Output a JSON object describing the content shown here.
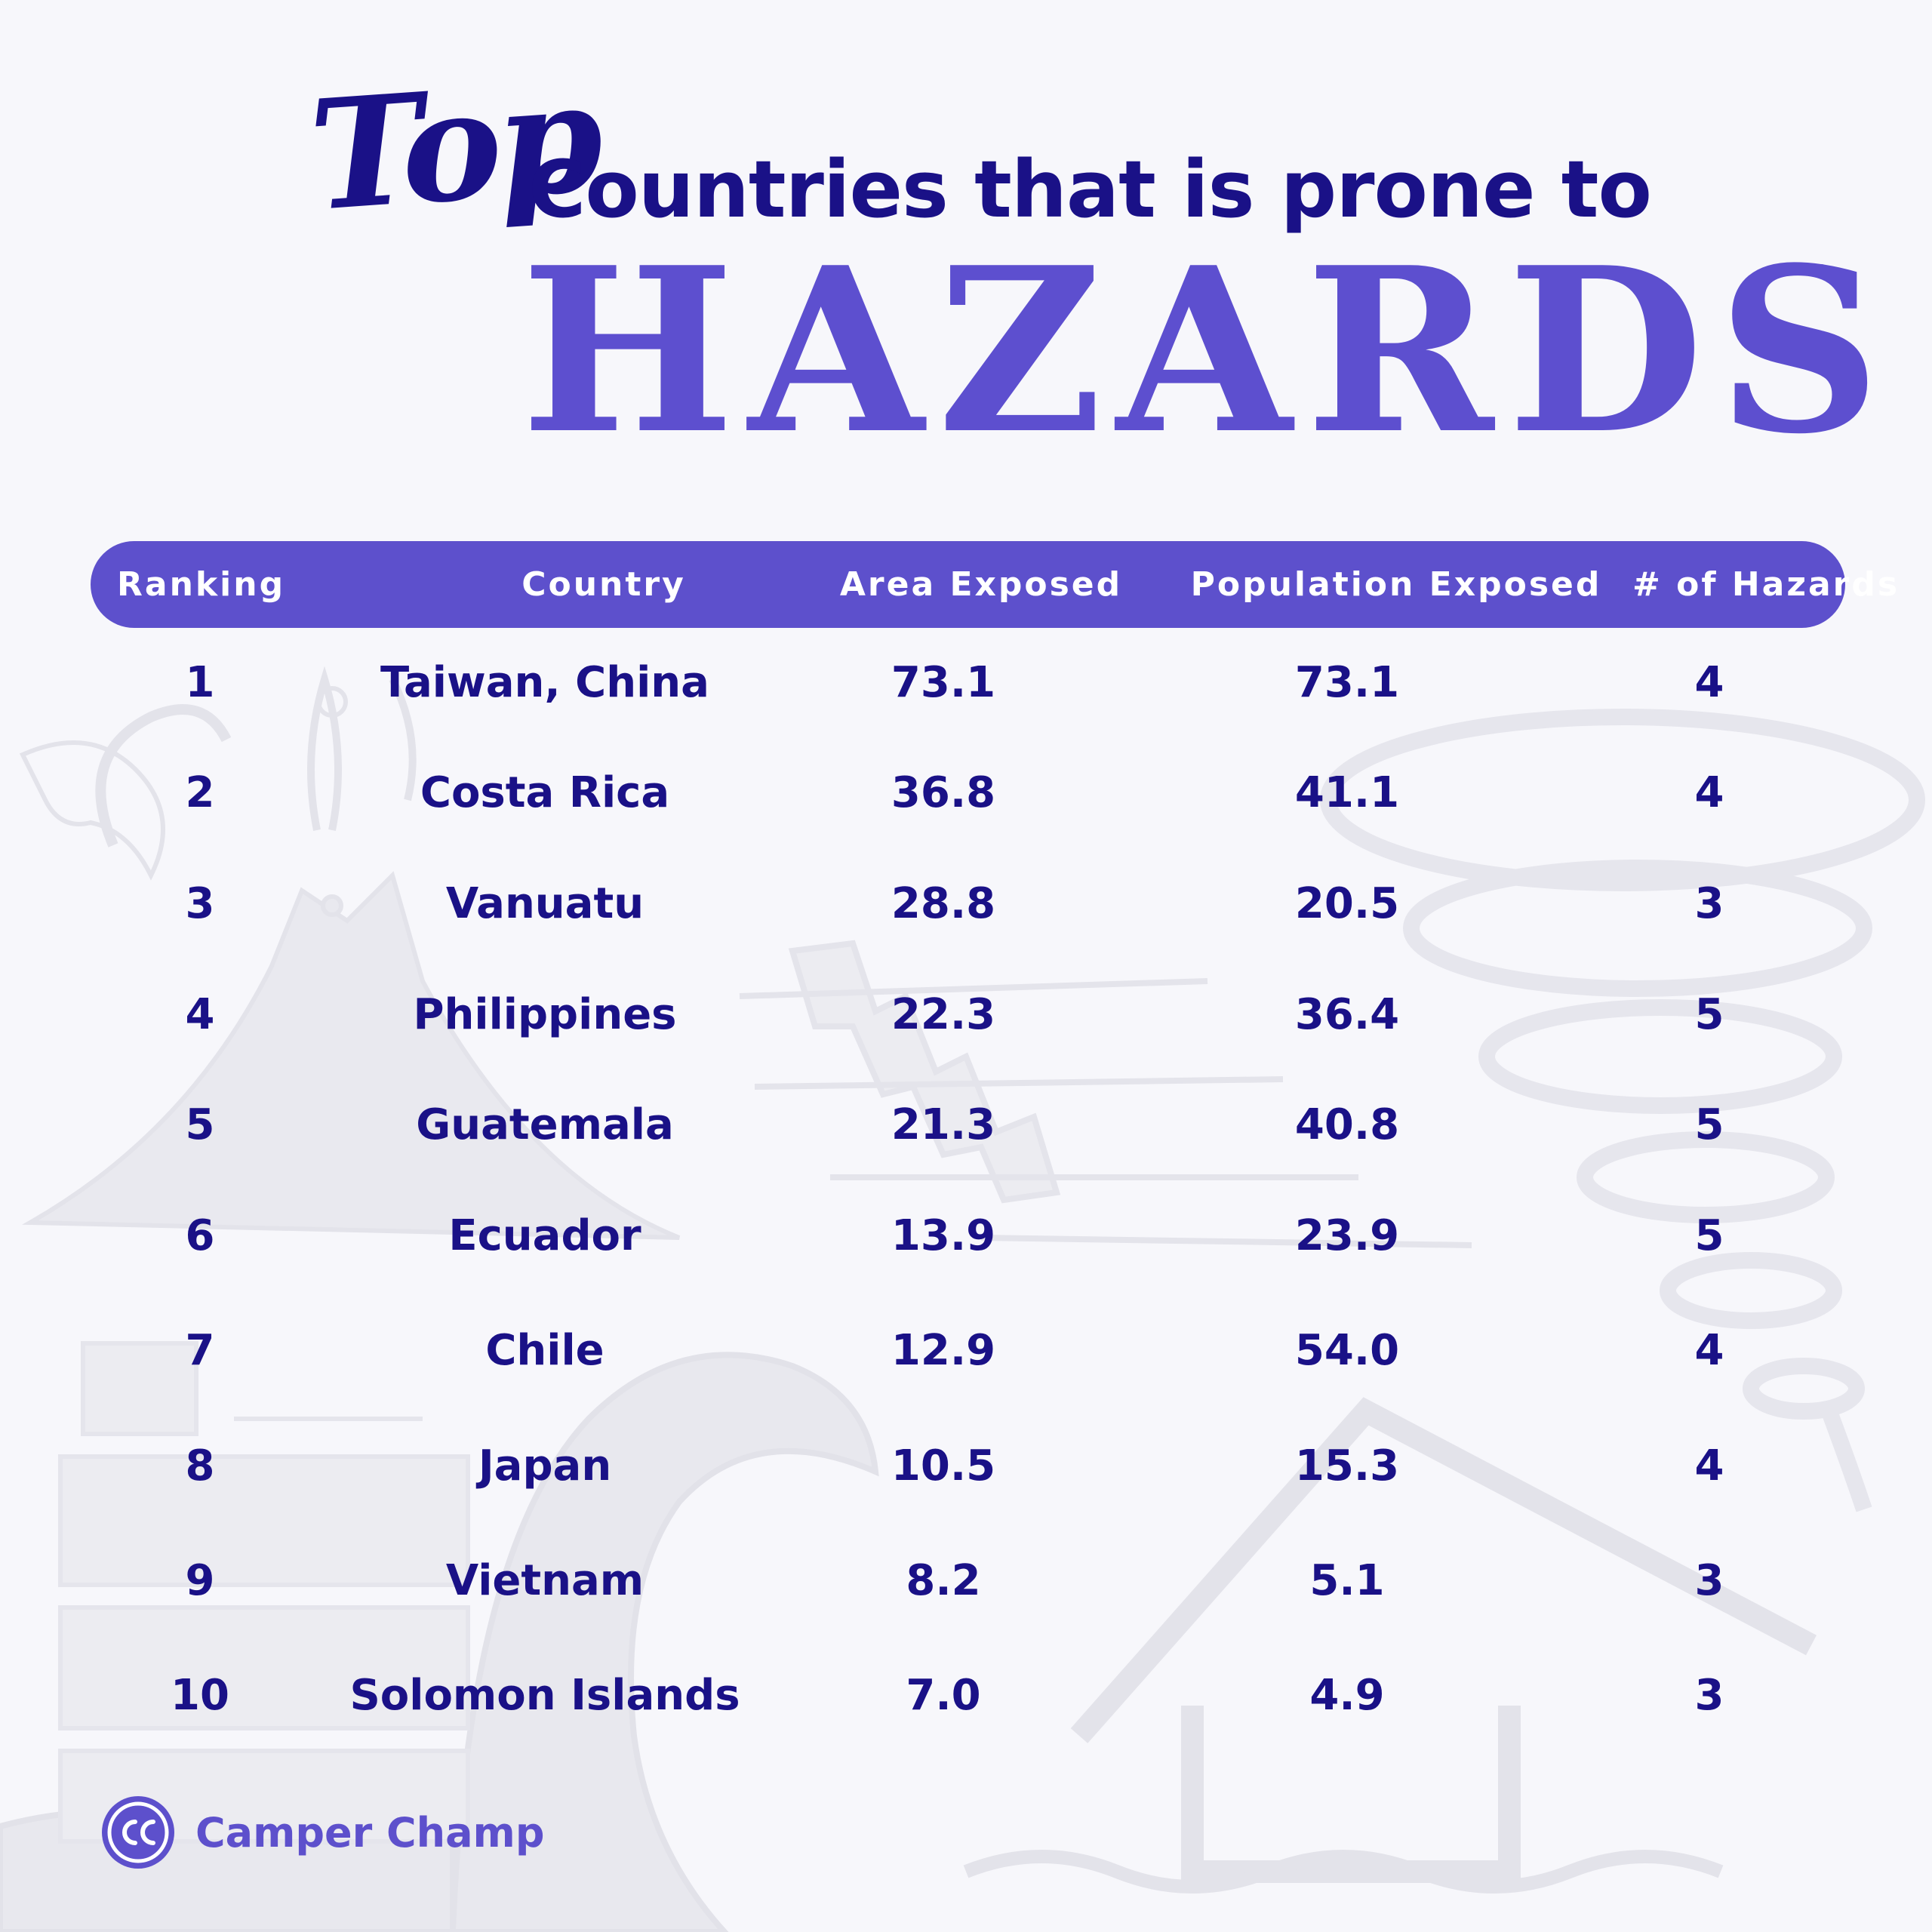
{
  "title": {
    "script": "Top",
    "main": "Countries that is prone to",
    "emphasis": "HAZARDS"
  },
  "colors": {
    "accent": "#5d50cc",
    "text": "#1a1187",
    "background": "#f7f7fb"
  },
  "brand": {
    "name": "Camper Champ",
    "logo_icon": "cc-logo-icon"
  },
  "chart_data": {
    "type": "table",
    "columns": [
      "Ranking",
      "Country",
      "Area Exposed",
      "Population Exposed",
      "# of Hazards"
    ],
    "rows": [
      [
        "1",
        "Taiwan, China",
        "73.1",
        "73.1",
        "4"
      ],
      [
        "2",
        "Costa Rica",
        "36.8",
        "41.1",
        "4"
      ],
      [
        "3",
        "Vanuatu",
        "28.8",
        "20.5",
        "3"
      ],
      [
        "4",
        "Philippines",
        "22.3",
        "36.4",
        "5"
      ],
      [
        "5",
        "Guatemala",
        "21.3",
        "40.8",
        "5"
      ],
      [
        "6",
        "Ecuador",
        "13.9",
        "23.9",
        "5"
      ],
      [
        "7",
        "Chile",
        "12.9",
        "54.0",
        "4"
      ],
      [
        "8",
        "Japan",
        "10.5",
        "15.3",
        "4"
      ],
      [
        "9",
        "Vietnam",
        "8.2",
        "5.1",
        "3"
      ],
      [
        "10",
        "Solomon Islands",
        "7.0",
        "4.9",
        "3"
      ]
    ]
  },
  "decorations": [
    "volcano-illustration",
    "tornado-illustration",
    "earthquake-crack-illustration",
    "tsunami-wave-illustration",
    "flooded-house-illustration",
    "building-illustration"
  ]
}
